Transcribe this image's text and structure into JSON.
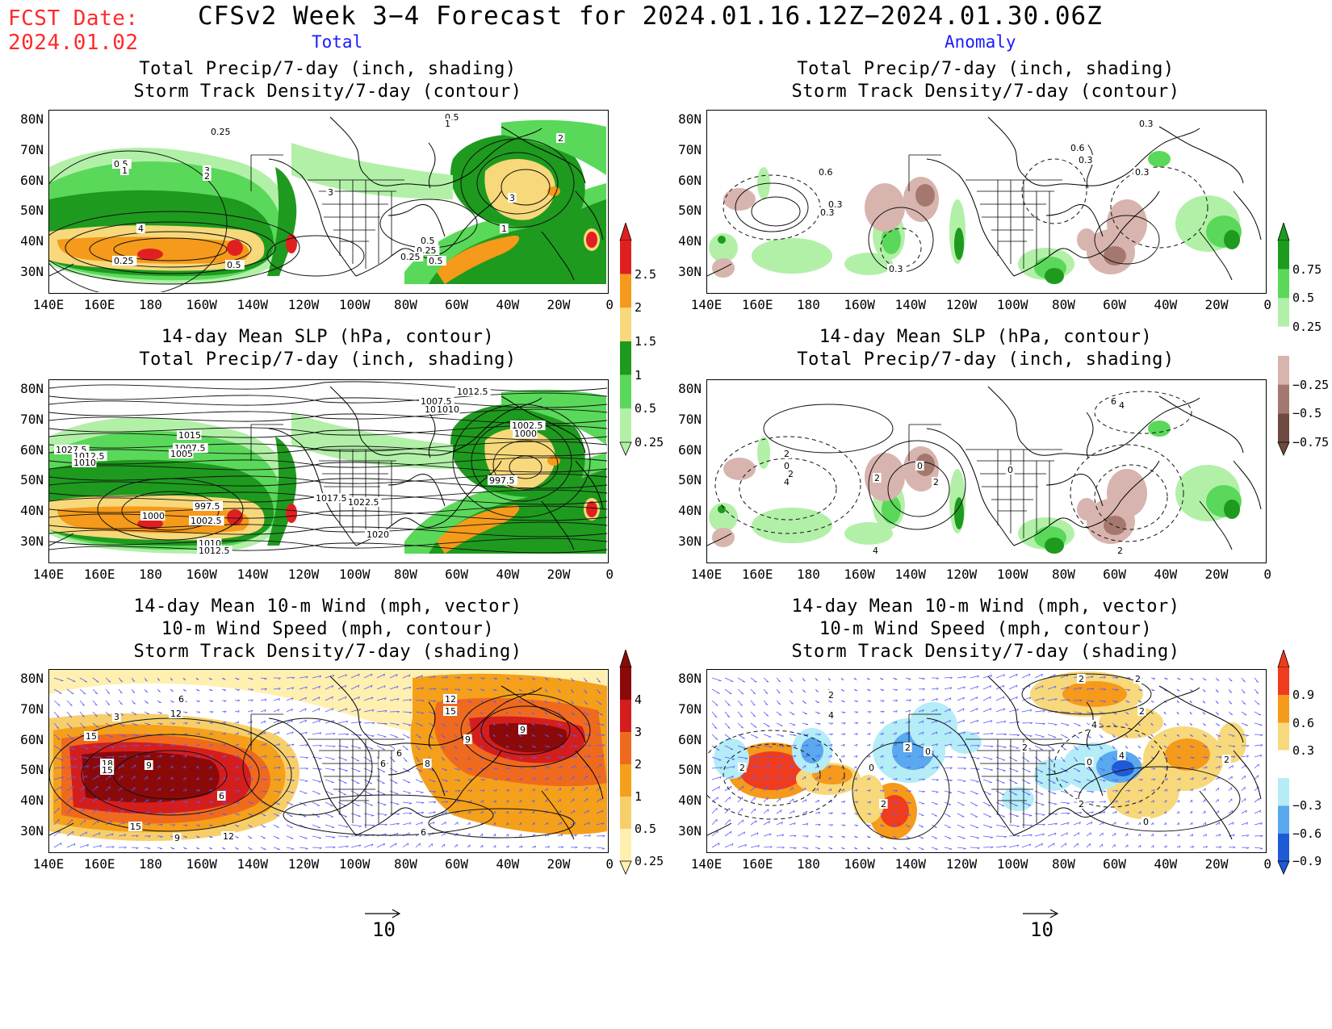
{
  "fcst": {
    "line1": "FCST Date:",
    "line2": "2024.01.02"
  },
  "title": "CFSv2 Week 3−4 Forecast for 2024.01.16.12Z−2024.01.30.06Z",
  "columns": {
    "left": "Total",
    "right": "Anomaly"
  },
  "axes": {
    "lat_labels": [
      "80N",
      "70N",
      "60N",
      "50N",
      "40N",
      "30N"
    ],
    "lon_labels": [
      "140E",
      "160E",
      "180",
      "160W",
      "140W",
      "120W",
      "100W",
      "80W",
      "60W",
      "40W",
      "20W",
      "0"
    ]
  },
  "panels": {
    "p1": {
      "line1": "Total Precip/7-day (inch, shading)",
      "line2": "Storm Track Density/7-day (contour)"
    },
    "p2": {
      "line1": "Total Precip/7-day (inch, shading)",
      "line2": "Storm Track Density/7-day (contour)"
    },
    "p3": {
      "line1": "14-day Mean SLP (hPa, contour)",
      "line2": "Total Precip/7-day (inch, shading)"
    },
    "p4": {
      "line1": "14-day Mean SLP (hPa, contour)",
      "line2": "Total Precip/7-day (inch, shading)"
    },
    "p5": {
      "line1": "14-day Mean 10-m Wind (mph, vector)",
      "line2": "10-m Wind Speed (mph, contour)",
      "line3": "Storm Track Density/7-day (shading)"
    },
    "p6": {
      "line1": "14-day Mean 10-m Wind (mph, vector)",
      "line2": "10-m Wind Speed (mph, contour)",
      "line3": "Storm Track Density/7-day (shading)"
    }
  },
  "colorbars": {
    "precip_total": {
      "labels": [
        "2.5",
        "2",
        "1.5",
        "1",
        "0.5",
        "0.25"
      ],
      "colors": [
        "#e02020",
        "#f59a1a",
        "#f7d87a",
        "#1e9a1e",
        "#5ad85a",
        "#b2f0a8"
      ]
    },
    "precip_anom": {
      "labels": [
        "0.75",
        "0.5",
        "0.25",
        "−0.25",
        "−0.5",
        "−0.75"
      ],
      "colors": [
        "#1e9a1e",
        "#5ad85a",
        "#b2f0a8",
        "#ffffff",
        "#d8b4ae",
        "#a4786f",
        "#6e4a40"
      ]
    },
    "storm_total": {
      "labels": [
        "4",
        "3",
        "2",
        "1",
        "0.5",
        "0.25"
      ],
      "colors": [
        "#8a0a0a",
        "#d41e1e",
        "#f06a1e",
        "#f5a01a",
        "#f7cf6a",
        "#fff0b0"
      ]
    },
    "storm_anom": {
      "labels": [
        "0.9",
        "0.6",
        "0.3",
        "−0.3",
        "−0.6",
        "−0.9"
      ],
      "colors": [
        "#f03c1e",
        "#f59a1a",
        "#f7d87a",
        "#ffffff",
        "#b4ecf7",
        "#5aa8ee",
        "#1e5ad6"
      ]
    }
  },
  "vector_ref": {
    "left": "10",
    "right": "10"
  },
  "contour_labels": {
    "p1": [
      "0.25",
      "0.5",
      "1",
      "2",
      "3",
      "4",
      "0.25",
      "0.5",
      "0.25",
      "0.5",
      "0.25",
      "0.5",
      "1",
      "3",
      "2",
      "0.5",
      "1",
      "3"
    ],
    "p2": [
      "0.3",
      "0.6",
      "0.3",
      "0.3",
      "0.3",
      "0.3",
      "0.6",
      "0.3"
    ],
    "p3": [
      "1027.5",
      "1012.5",
      "1010",
      "1015",
      "1007.5",
      "1005",
      "997.5",
      "1000",
      "1002.5",
      "1010",
      "1012.5",
      "1017.5",
      "1022.5",
      "1020",
      "1007.5",
      "1005",
      "1012.5",
      "1010",
      "997.5",
      "1002.5",
      "1000"
    ],
    "p4": [
      "2",
      "0",
      "2",
      "4",
      "2",
      "0",
      "2",
      "0",
      "4",
      "6",
      "4",
      "2"
    ],
    "p5": [
      "15",
      "12",
      "6",
      "3",
      "18",
      "15",
      "9",
      "6",
      "15",
      "9",
      "12",
      "6",
      "12",
      "15",
      "9",
      "9",
      "6",
      "8",
      "6"
    ],
    "p6": [
      "2",
      "2",
      "0",
      "2",
      "0",
      "4",
      "2",
      "2",
      "2",
      "4",
      "0",
      "2",
      "2",
      "0",
      "2",
      "2",
      "4"
    ]
  }
}
